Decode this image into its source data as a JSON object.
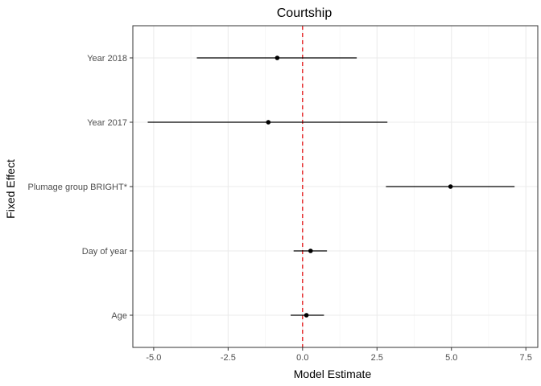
{
  "chart_data": {
    "type": "scatter",
    "title": "Courtship",
    "xlabel": "Model Estimate",
    "ylabel": "Fixed Effect",
    "xlim": [
      -5.7,
      7.9
    ],
    "x_ticks": [
      -5.0,
      -2.5,
      0.0,
      2.5,
      5.0,
      7.5
    ],
    "x_tick_labels": [
      "-5.0",
      "-2.5",
      "0.0",
      "2.5",
      "5.0",
      "7.5"
    ],
    "categories": [
      "Year 2018",
      "Year 2017",
      "Plumage group BRIGHT*",
      "Day of year",
      "Age"
    ],
    "estimates": [
      -0.85,
      -1.15,
      4.97,
      0.27,
      0.13
    ],
    "lower": [
      -3.55,
      -5.2,
      2.8,
      -0.3,
      -0.4
    ],
    "upper": [
      1.82,
      2.85,
      7.12,
      0.82,
      0.72
    ],
    "reference_line": 0,
    "reference_line_color": "#e41a1c",
    "grid": true,
    "panel_border_color": "#333333",
    "point_color": "#000000"
  }
}
